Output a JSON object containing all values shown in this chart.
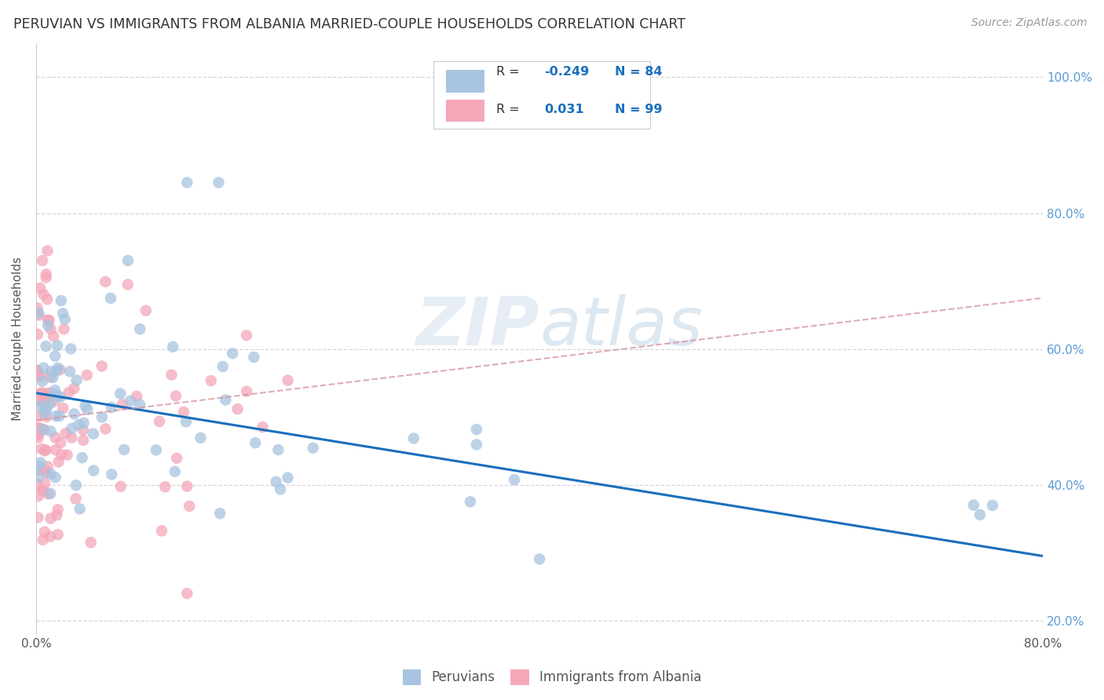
{
  "title": "PERUVIAN VS IMMIGRANTS FROM ALBANIA MARRIED-COUPLE HOUSEHOLDS CORRELATION CHART",
  "source": "Source: ZipAtlas.com",
  "ylabel": "Married-couple Households",
  "xlim": [
    0.0,
    0.8
  ],
  "ylim": [
    0.18,
    1.05
  ],
  "xticks": [
    0.0,
    0.1,
    0.2,
    0.3,
    0.4,
    0.5,
    0.6,
    0.7,
    0.8
  ],
  "xticklabels": [
    "0.0%",
    "",
    "",
    "",
    "",
    "",
    "",
    "",
    "80.0%"
  ],
  "yticks": [
    0.2,
    0.4,
    0.6,
    0.8,
    1.0
  ],
  "yticklabels_left": [
    "",
    "",
    "",
    "",
    ""
  ],
  "yticklabels_right": [
    "20.0%",
    "40.0%",
    "60.0%",
    "80.0%",
    "100.0%"
  ],
  "peruvian_color": "#a8c4e0",
  "albania_color": "#f4a7b9",
  "peruvian_line_color": "#1a6fbd",
  "albania_line_color": "#d4909f",
  "background_color": "#ffffff",
  "grid_color": "#cccccc",
  "right_tick_color": "#5b9bd5",
  "peru_line_x0": 0.0,
  "peru_line_y0": 0.535,
  "peru_line_x1": 0.8,
  "peru_line_y1": 0.295,
  "alba_line_x0": 0.0,
  "alba_line_y0": 0.495,
  "alba_line_x1": 0.8,
  "alba_line_y1": 0.675,
  "watermark_text": "ZIPatlas",
  "legend_R_peruvian": "-0.249",
  "legend_N_peruvian": "84",
  "legend_R_albania": "0.031",
  "legend_N_albania": "99"
}
